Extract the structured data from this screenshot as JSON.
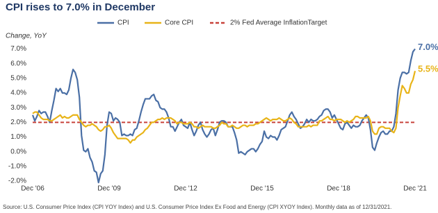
{
  "chart_data": {
    "type": "line",
    "title": "CPI rises to 7.0% in December",
    "y_label": "Change, YoY",
    "source": "Source: U.S. Consumer Price Index (CPI YOY Index) and U.S. Consumer Price Index Ex Food and Energy (CPI XYOY Index). Monthly data as of 12/31/2021.",
    "x": [
      "2006-12",
      "2007-01",
      "2007-02",
      "2007-03",
      "2007-04",
      "2007-05",
      "2007-06",
      "2007-07",
      "2007-08",
      "2007-09",
      "2007-10",
      "2007-11",
      "2007-12",
      "2008-01",
      "2008-02",
      "2008-03",
      "2008-04",
      "2008-05",
      "2008-06",
      "2008-07",
      "2008-08",
      "2008-09",
      "2008-10",
      "2008-11",
      "2008-12",
      "2009-01",
      "2009-02",
      "2009-03",
      "2009-04",
      "2009-05",
      "2009-06",
      "2009-07",
      "2009-08",
      "2009-09",
      "2009-10",
      "2009-11",
      "2009-12",
      "2010-01",
      "2010-02",
      "2010-03",
      "2010-04",
      "2010-05",
      "2010-06",
      "2010-07",
      "2010-08",
      "2010-09",
      "2010-10",
      "2010-11",
      "2010-12",
      "2011-01",
      "2011-02",
      "2011-03",
      "2011-04",
      "2011-05",
      "2011-06",
      "2011-07",
      "2011-08",
      "2011-09",
      "2011-10",
      "2011-11",
      "2011-12",
      "2012-01",
      "2012-02",
      "2012-03",
      "2012-04",
      "2012-05",
      "2012-06",
      "2012-07",
      "2012-08",
      "2012-09",
      "2012-10",
      "2012-11",
      "2012-12",
      "2013-01",
      "2013-02",
      "2013-03",
      "2013-04",
      "2013-05",
      "2013-06",
      "2013-07",
      "2013-08",
      "2013-09",
      "2013-10",
      "2013-11",
      "2013-12",
      "2014-01",
      "2014-02",
      "2014-03",
      "2014-04",
      "2014-05",
      "2014-06",
      "2014-07",
      "2014-08",
      "2014-09",
      "2014-10",
      "2014-11",
      "2014-12",
      "2015-01",
      "2015-02",
      "2015-03",
      "2015-04",
      "2015-05",
      "2015-06",
      "2015-07",
      "2015-08",
      "2015-09",
      "2015-10",
      "2015-11",
      "2015-12",
      "2016-01",
      "2016-02",
      "2016-03",
      "2016-04",
      "2016-05",
      "2016-06",
      "2016-07",
      "2016-08",
      "2016-09",
      "2016-10",
      "2016-11",
      "2016-12",
      "2017-01",
      "2017-02",
      "2017-03",
      "2017-04",
      "2017-05",
      "2017-06",
      "2017-07",
      "2017-08",
      "2017-09",
      "2017-10",
      "2017-11",
      "2017-12",
      "2018-01",
      "2018-02",
      "2018-03",
      "2018-04",
      "2018-05",
      "2018-06",
      "2018-07",
      "2018-08",
      "2018-09",
      "2018-10",
      "2018-11",
      "2018-12",
      "2019-01",
      "2019-02",
      "2019-03",
      "2019-04",
      "2019-05",
      "2019-06",
      "2019-07",
      "2019-08",
      "2019-09",
      "2019-10",
      "2019-11",
      "2019-12",
      "2020-01",
      "2020-02",
      "2020-03",
      "2020-04",
      "2020-05",
      "2020-06",
      "2020-07",
      "2020-08",
      "2020-09",
      "2020-10",
      "2020-11",
      "2020-12",
      "2021-01",
      "2021-02",
      "2021-03",
      "2021-04",
      "2021-05",
      "2021-06",
      "2021-07",
      "2021-08",
      "2021-09",
      "2021-10",
      "2021-11",
      "2021-12"
    ],
    "series": [
      {
        "name": "CPI",
        "color": "#4a6fa5",
        "end_label": "7.0%",
        "values": [
          2.5,
          2.1,
          2.4,
          2.8,
          2.6,
          2.7,
          2.7,
          2.4,
          2.0,
          2.8,
          3.5,
          4.3,
          4.1,
          4.3,
          4.0,
          4.0,
          3.9,
          4.2,
          5.0,
          5.6,
          5.4,
          4.9,
          3.7,
          1.1,
          0.1,
          0.0,
          0.2,
          -0.4,
          -0.7,
          -1.3,
          -1.4,
          -2.1,
          -1.5,
          -1.3,
          -0.2,
          1.8,
          2.7,
          2.6,
          2.1,
          2.3,
          2.2,
          2.0,
          1.1,
          1.2,
          1.1,
          1.1,
          1.2,
          1.1,
          1.5,
          1.6,
          2.1,
          2.7,
          3.2,
          3.6,
          3.6,
          3.6,
          3.8,
          3.9,
          3.5,
          3.4,
          3.0,
          2.9,
          2.9,
          2.7,
          2.3,
          1.7,
          1.7,
          1.4,
          1.7,
          2.0,
          2.2,
          1.8,
          1.7,
          1.6,
          2.0,
          1.5,
          1.1,
          1.4,
          1.8,
          2.0,
          1.5,
          1.2,
          1.0,
          1.2,
          1.5,
          1.6,
          1.1,
          1.5,
          2.0,
          2.1,
          2.1,
          2.0,
          1.7,
          1.7,
          1.7,
          1.3,
          0.8,
          -0.1,
          0.0,
          -0.1,
          -0.2,
          0.0,
          0.1,
          0.2,
          0.2,
          0.0,
          0.2,
          0.5,
          0.7,
          1.4,
          1.0,
          0.9,
          1.1,
          1.0,
          1.0,
          0.8,
          1.1,
          1.5,
          1.6,
          1.7,
          2.1,
          2.5,
          2.7,
          2.4,
          2.2,
          1.9,
          1.6,
          1.7,
          1.9,
          2.2,
          2.0,
          2.2,
          2.1,
          2.1,
          2.2,
          2.4,
          2.5,
          2.8,
          2.9,
          2.9,
          2.7,
          2.3,
          2.5,
          2.2,
          1.9,
          1.6,
          1.5,
          1.9,
          2.0,
          1.8,
          1.6,
          1.8,
          1.7,
          1.7,
          1.8,
          2.1,
          2.3,
          2.5,
          2.3,
          1.5,
          0.3,
          0.1,
          0.6,
          1.0,
          1.3,
          1.4,
          1.2,
          1.2,
          1.4,
          1.4,
          1.7,
          2.6,
          4.2,
          5.0,
          5.4,
          5.4,
          5.3,
          5.4,
          6.2,
          6.8,
          7.0
        ]
      },
      {
        "name": "Core CPI",
        "color": "#e8b418",
        "end_label": "5.5%",
        "values": [
          2.6,
          2.7,
          2.7,
          2.5,
          2.3,
          2.2,
          2.2,
          2.2,
          2.1,
          2.1,
          2.2,
          2.3,
          2.4,
          2.5,
          2.3,
          2.4,
          2.3,
          2.3,
          2.4,
          2.5,
          2.5,
          2.5,
          2.2,
          2.0,
          1.8,
          1.7,
          1.8,
          1.8,
          1.9,
          1.8,
          1.7,
          1.5,
          1.4,
          1.5,
          1.7,
          1.7,
          1.8,
          1.6,
          1.3,
          1.1,
          0.9,
          0.9,
          0.9,
          0.9,
          0.9,
          0.8,
          0.6,
          0.8,
          0.8,
          1.0,
          1.1,
          1.2,
          1.3,
          1.5,
          1.6,
          1.8,
          2.0,
          2.0,
          2.1,
          2.2,
          2.2,
          2.3,
          2.2,
          2.3,
          2.3,
          2.3,
          2.2,
          2.1,
          1.9,
          2.0,
          2.0,
          1.9,
          1.9,
          1.9,
          2.0,
          1.9,
          1.7,
          1.7,
          1.6,
          1.7,
          1.8,
          1.7,
          1.7,
          1.7,
          1.7,
          1.6,
          1.6,
          1.7,
          1.8,
          2.0,
          1.9,
          1.9,
          1.7,
          1.7,
          1.8,
          1.7,
          1.6,
          1.6,
          1.7,
          1.8,
          1.8,
          1.7,
          1.8,
          1.8,
          1.8,
          1.9,
          1.9,
          2.0,
          2.1,
          2.2,
          2.3,
          2.2,
          2.1,
          2.2,
          2.2,
          2.2,
          2.3,
          2.2,
          2.1,
          2.1,
          2.2,
          2.3,
          2.2,
          2.0,
          1.9,
          1.7,
          1.7,
          1.7,
          1.7,
          1.7,
          1.8,
          1.7,
          1.8,
          1.8,
          1.8,
          2.1,
          2.1,
          2.2,
          2.3,
          2.4,
          2.2,
          2.2,
          2.1,
          2.2,
          2.2,
          2.2,
          2.1,
          2.0,
          2.1,
          2.0,
          2.1,
          2.2,
          2.4,
          2.4,
          2.3,
          2.3,
          2.3,
          2.3,
          2.4,
          2.1,
          1.4,
          1.2,
          1.2,
          1.6,
          1.7,
          1.7,
          1.6,
          1.6,
          1.6,
          1.4,
          1.3,
          1.6,
          3.0,
          3.8,
          4.5,
          4.3,
          4.0,
          4.0,
          4.6,
          4.9,
          5.5
        ]
      }
    ],
    "reference_line": {
      "name": "2% Fed Average InflationTarget",
      "value": 2,
      "color": "#c8423a"
    },
    "xlim": [
      "2006-12",
      "2021-12"
    ],
    "xticks": [
      {
        "value": "2006-12",
        "label": "Dec '06"
      },
      {
        "value": "2009-12",
        "label": "Dec '09"
      },
      {
        "value": "2012-12",
        "label": "Dec '12"
      },
      {
        "value": "2015-12",
        "label": "Dec '15"
      },
      {
        "value": "2018-12",
        "label": "Dec '18"
      },
      {
        "value": "2021-12",
        "label": "Dec '21"
      }
    ],
    "ylim": [
      -2,
      7.4
    ],
    "yticks": [
      {
        "value": -2,
        "label": "-2.0%"
      },
      {
        "value": -1,
        "label": "-1.0%"
      },
      {
        "value": 0,
        "label": "0.0%"
      },
      {
        "value": 1,
        "label": "1.0%"
      },
      {
        "value": 2,
        "label": "2.0%"
      },
      {
        "value": 3,
        "label": "3.0%"
      },
      {
        "value": 4,
        "label": "4.0%"
      },
      {
        "value": 5,
        "label": "5.0%"
      },
      {
        "value": 6,
        "label": "6.0%"
      },
      {
        "value": 7,
        "label": "7.0%"
      }
    ]
  }
}
